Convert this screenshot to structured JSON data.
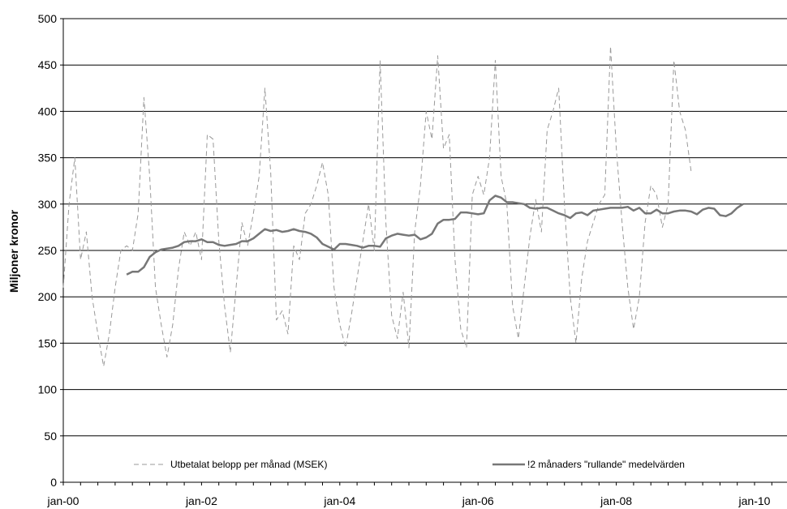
{
  "chart_data": {
    "type": "line",
    "title": "",
    "ylabel": "Miljoner kronor",
    "xlabel": "",
    "ylim": [
      0,
      500
    ],
    "yticks": [
      0,
      50,
      100,
      150,
      200,
      250,
      300,
      350,
      400,
      450,
      500
    ],
    "xticks": [
      {
        "label": "jan-00",
        "month": 0
      },
      {
        "label": "jan-02",
        "month": 24
      },
      {
        "label": "jan-04",
        "month": 48
      },
      {
        "label": "jan-06",
        "month": 72
      },
      {
        "label": "jan-08",
        "month": 96
      },
      {
        "label": "jan-10",
        "month": 120
      }
    ],
    "grid": "horizontal",
    "legend_position": "bottom",
    "series": [
      {
        "name": "Utbetalat belopp per månad (MSEK)",
        "style": "dashed",
        "color": "#999999",
        "start_month": 0,
        "values": [
          210,
          300,
          350,
          240,
          270,
          200,
          160,
          125,
          160,
          210,
          250,
          255,
          250,
          290,
          415,
          330,
          210,
          170,
          135,
          170,
          230,
          270,
          255,
          270,
          240,
          375,
          370,
          260,
          190,
          140,
          210,
          280,
          255,
          290,
          330,
          425,
          335,
          175,
          185,
          160,
          255,
          240,
          290,
          300,
          320,
          345,
          310,
          210,
          170,
          145,
          180,
          220,
          260,
          300,
          250,
          455,
          280,
          180,
          155,
          205,
          145,
          270,
          320,
          400,
          370,
          460,
          360,
          375,
          240,
          165,
          145,
          310,
          330,
          310,
          350,
          455,
          330,
          300,
          190,
          155,
          210,
          265,
          305,
          270,
          380,
          400,
          425,
          300,
          200,
          150,
          220,
          260,
          280,
          300,
          310,
          470,
          360,
          280,
          210,
          165,
          200,
          280,
          320,
          310,
          275,
          300,
          455,
          400,
          380,
          335
        ]
      },
      {
        "name": "!2 månaders \"rullande\" medelvärden",
        "style": "solid",
        "color": "#777777",
        "start_month": 11,
        "values": [
          224,
          227,
          227,
          232,
          243,
          248,
          251,
          252,
          253,
          255,
          259,
          260,
          260,
          262,
          259,
          259,
          256,
          255,
          256,
          257,
          260,
          260,
          263,
          268,
          273,
          271,
          272,
          270,
          271,
          273,
          271,
          270,
          268,
          264,
          257,
          254,
          251,
          257,
          257,
          256,
          255,
          253,
          255,
          255,
          254,
          263,
          266,
          268,
          267,
          266,
          267,
          262,
          264,
          268,
          279,
          283,
          283,
          284,
          291,
          291,
          290,
          289,
          290,
          304,
          309,
          307,
          302,
          302,
          301,
          300,
          296,
          295,
          296,
          296,
          293,
          290,
          288,
          285,
          290,
          291,
          288,
          293,
          294,
          295,
          296,
          296,
          296,
          297,
          293,
          296,
          290,
          290,
          294,
          290,
          290,
          292,
          293,
          293,
          292,
          289,
          294,
          296,
          295,
          288,
          287,
          290,
          296,
          300
        ]
      }
    ]
  }
}
